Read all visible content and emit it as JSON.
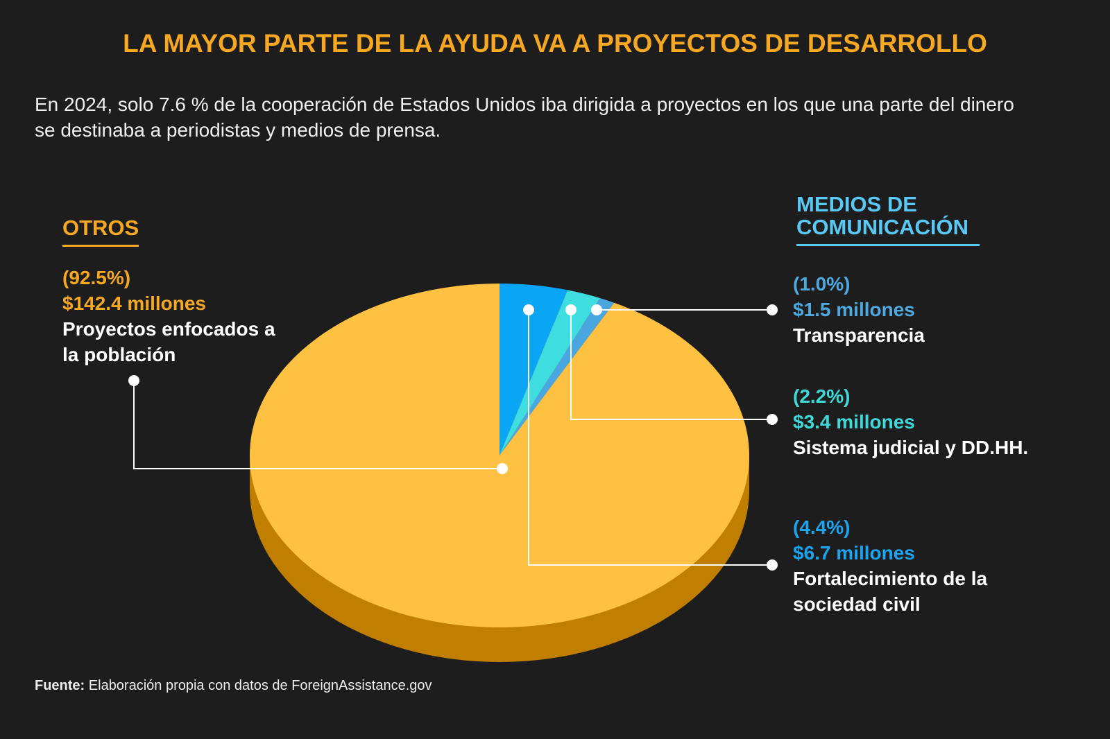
{
  "chart_data": {
    "type": "pie",
    "title": "LA MAYOR PARTE DE LA AYUDA VA A PROYECTOS DE DESARROLLO",
    "subtitle": "En 2024, solo 7.6 % de la cooperación de Estados Unidos iba dirigida a proyectos en los que una parte del dinero se destinaba a periodistas y medios de prensa.",
    "groups": [
      "OTROS",
      "MEDIOS DE COMUNICACIÓN"
    ],
    "categories": [
      "Fortalecimiento de la sociedad civil",
      "Sistema judicial y DD.HH.",
      "Transparencia",
      "Proyectos enfocados a la población"
    ],
    "values": [
      4.4,
      2.2,
      1.0,
      92.5
    ],
    "value_labels": [
      "(4.4%)",
      "(2.2%)",
      "(1.0%)",
      "(92.5%)"
    ],
    "amounts": [
      6.7,
      3.4,
      1.5,
      142.4
    ],
    "amount_labels": [
      "$6.7 millones",
      "$3.4 millones",
      "$1.5 millones",
      "$142.4 millones"
    ],
    "colors": [
      "#0aa6f5",
      "#3ddde0",
      "#4aa6de",
      "#fec142"
    ],
    "source": {
      "label": "Fuente:",
      "text": "Elaboración propia con datos de ForeignAssistance.gov"
    }
  }
}
